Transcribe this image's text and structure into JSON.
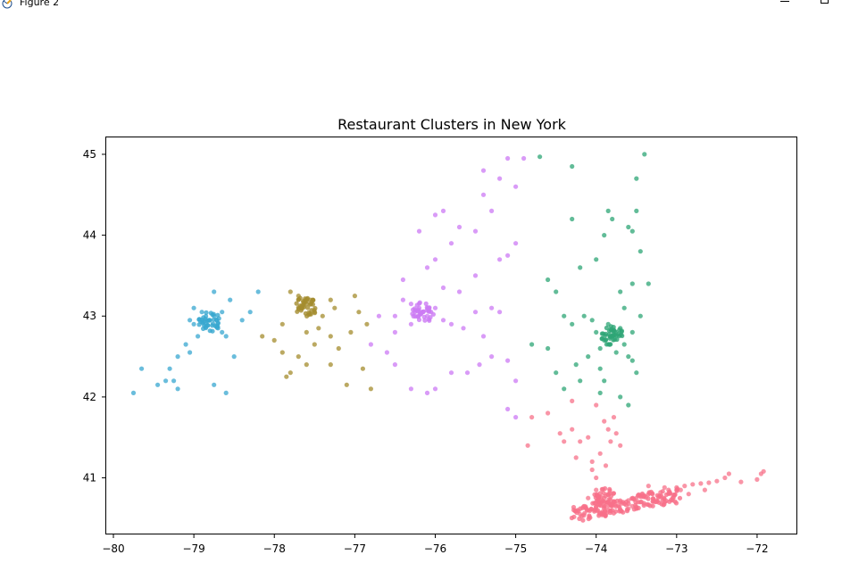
{
  "window": {
    "title": "Figure 2",
    "icon": "matplotlib-figure-icon"
  },
  "controls": {
    "minimize_icon": "minimize-icon",
    "maximize_icon": "maximize-icon"
  },
  "chart_data": {
    "type": "scatter",
    "title": "Restaurant Clusters in New York",
    "xlabel": "",
    "ylabel": "",
    "xlim": [
      -80.1,
      -71.5
    ],
    "ylim": [
      40.3,
      45.22
    ],
    "xticks": [
      -80,
      -79,
      -78,
      -77,
      -76,
      -75,
      -74,
      -73,
      -72
    ],
    "yticks": [
      41,
      42,
      43,
      44,
      45
    ],
    "xtick_labels": [
      "−80",
      "−79",
      "−78",
      "−77",
      "−76",
      "−75",
      "−74",
      "−73",
      "−72"
    ],
    "ytick_labels": [
      "41",
      "42",
      "43",
      "44",
      "45"
    ],
    "grid": false,
    "legend": "none",
    "series": [
      {
        "color": "#f77189",
        "cluster_center": [
          -73.9,
          40.75
        ],
        "points": [
          [
            -74.2,
            40.55
          ],
          [
            -74.1,
            40.6
          ],
          [
            -74.0,
            40.65
          ],
          [
            -73.95,
            40.7
          ],
          [
            -73.9,
            40.75
          ],
          [
            -73.85,
            40.7
          ],
          [
            -73.8,
            40.68
          ],
          [
            -73.7,
            40.7
          ],
          [
            -73.6,
            40.72
          ],
          [
            -73.5,
            40.75
          ],
          [
            -73.4,
            40.78
          ],
          [
            -73.3,
            40.8
          ],
          [
            -73.2,
            40.82
          ],
          [
            -73.1,
            40.85
          ],
          [
            -73.0,
            40.88
          ],
          [
            -72.9,
            40.9
          ],
          [
            -72.8,
            40.92
          ],
          [
            -72.7,
            40.93
          ],
          [
            -72.6,
            40.94
          ],
          [
            -72.5,
            40.96
          ],
          [
            -72.4,
            41.0
          ],
          [
            -72.35,
            41.05
          ],
          [
            -72.2,
            40.95
          ],
          [
            -72.0,
            40.98
          ],
          [
            -71.95,
            41.05
          ],
          [
            -71.92,
            41.08
          ],
          [
            -74.0,
            41.0
          ],
          [
            -74.05,
            41.2
          ],
          [
            -73.95,
            41.3
          ],
          [
            -74.1,
            41.5
          ],
          [
            -74.2,
            41.45
          ],
          [
            -73.85,
            41.6
          ],
          [
            -73.9,
            41.7
          ],
          [
            -74.3,
            41.6
          ],
          [
            -74.4,
            41.45
          ],
          [
            -74.6,
            41.8
          ],
          [
            -74.8,
            41.75
          ],
          [
            -74.85,
            41.4
          ],
          [
            -74.3,
            41.95
          ],
          [
            -73.75,
            41.55
          ],
          [
            -73.7,
            41.4
          ],
          [
            -74.0,
            40.85
          ],
          [
            -74.1,
            40.75
          ],
          [
            -74.15,
            40.65
          ],
          [
            -73.98,
            40.6
          ],
          [
            -73.92,
            40.58
          ],
          [
            -73.8,
            40.6
          ],
          [
            -73.6,
            40.62
          ],
          [
            -73.55,
            40.65
          ],
          [
            -73.45,
            40.7
          ],
          [
            -73.25,
            40.72
          ],
          [
            -73.05,
            40.75
          ],
          [
            -72.85,
            40.8
          ],
          [
            -72.65,
            40.85
          ],
          [
            -73.35,
            40.9
          ],
          [
            -73.15,
            40.88
          ],
          [
            -72.95,
            40.85
          ],
          [
            -74.05,
            41.1
          ],
          [
            -73.88,
            41.15
          ],
          [
            -74.25,
            41.25
          ],
          [
            -73.82,
            41.45
          ],
          [
            -74.45,
            41.55
          ],
          [
            -74.0,
            41.9
          ],
          [
            -73.78,
            41.75
          ]
        ]
      },
      {
        "color": "#2ea576",
        "cluster_center": [
          -73.8,
          42.75
        ],
        "points": [
          [
            -73.8,
            42.75
          ],
          [
            -73.75,
            42.8
          ],
          [
            -73.9,
            42.7
          ],
          [
            -73.7,
            42.85
          ],
          [
            -73.85,
            42.9
          ],
          [
            -73.65,
            42.65
          ],
          [
            -73.95,
            42.6
          ],
          [
            -74.0,
            42.8
          ],
          [
            -73.6,
            42.5
          ],
          [
            -74.1,
            42.5
          ],
          [
            -73.5,
            42.3
          ],
          [
            -74.2,
            42.2
          ],
          [
            -73.9,
            42.2
          ],
          [
            -73.95,
            42.05
          ],
          [
            -73.7,
            42.0
          ],
          [
            -73.6,
            41.9
          ],
          [
            -74.4,
            42.1
          ],
          [
            -74.5,
            42.3
          ],
          [
            -74.6,
            42.6
          ],
          [
            -74.8,
            42.65
          ],
          [
            -74.3,
            42.9
          ],
          [
            -74.4,
            43.0
          ],
          [
            -74.5,
            43.3
          ],
          [
            -74.6,
            43.45
          ],
          [
            -74.2,
            43.6
          ],
          [
            -74.0,
            43.7
          ],
          [
            -73.9,
            44.0
          ],
          [
            -73.85,
            44.3
          ],
          [
            -73.8,
            44.2
          ],
          [
            -73.6,
            44.1
          ],
          [
            -73.5,
            44.3
          ],
          [
            -73.5,
            44.7
          ],
          [
            -73.4,
            45.0
          ],
          [
            -74.3,
            44.85
          ],
          [
            -74.3,
            44.2
          ],
          [
            -73.7,
            43.3
          ],
          [
            -73.65,
            43.1
          ],
          [
            -73.55,
            43.4
          ],
          [
            -73.45,
            43.0
          ],
          [
            -73.55,
            42.8
          ],
          [
            -74.7,
            44.97
          ],
          [
            -73.35,
            43.4
          ],
          [
            -73.45,
            43.8
          ],
          [
            -73.55,
            44.05
          ],
          [
            -73.55,
            42.45
          ],
          [
            -74.05,
            42.95
          ],
          [
            -74.15,
            43.0
          ],
          [
            -74.25,
            42.4
          ],
          [
            -73.95,
            42.35
          ],
          [
            -73.75,
            42.55
          ]
        ]
      },
      {
        "color": "#38a7d0",
        "cluster_center": [
          -78.8,
          42.93
        ],
        "points": [
          [
            -78.8,
            42.95
          ],
          [
            -78.85,
            42.9
          ],
          [
            -78.75,
            43.0
          ],
          [
            -78.7,
            42.85
          ],
          [
            -78.9,
            43.05
          ],
          [
            -78.65,
            42.8
          ],
          [
            -79.0,
            43.1
          ],
          [
            -79.05,
            42.95
          ],
          [
            -79.1,
            42.65
          ],
          [
            -79.2,
            42.5
          ],
          [
            -79.3,
            42.35
          ],
          [
            -79.35,
            42.2
          ],
          [
            -79.45,
            42.15
          ],
          [
            -79.2,
            42.1
          ],
          [
            -79.65,
            42.35
          ],
          [
            -79.75,
            42.05
          ],
          [
            -78.75,
            43.3
          ],
          [
            -78.55,
            43.2
          ],
          [
            -78.4,
            42.95
          ],
          [
            -78.5,
            42.5
          ],
          [
            -78.6,
            42.05
          ],
          [
            -78.75,
            42.15
          ],
          [
            -79.0,
            42.9
          ],
          [
            -78.3,
            43.05
          ],
          [
            -78.2,
            43.3
          ],
          [
            -78.65,
            43.05
          ],
          [
            -78.6,
            42.75
          ],
          [
            -78.95,
            42.75
          ],
          [
            -79.05,
            42.55
          ],
          [
            -79.25,
            42.2
          ]
        ]
      },
      {
        "color": "#a48c2e",
        "cluster_center": [
          -77.6,
          43.12
        ],
        "points": [
          [
            -77.6,
            43.15
          ],
          [
            -77.65,
            43.1
          ],
          [
            -77.55,
            43.2
          ],
          [
            -77.7,
            43.25
          ],
          [
            -77.5,
            43.05
          ],
          [
            -77.4,
            43.0
          ],
          [
            -77.8,
            43.3
          ],
          [
            -77.3,
            43.2
          ],
          [
            -77.25,
            43.1
          ],
          [
            -77.0,
            43.25
          ],
          [
            -76.95,
            43.05
          ],
          [
            -76.85,
            42.9
          ],
          [
            -77.05,
            42.8
          ],
          [
            -77.2,
            42.6
          ],
          [
            -77.3,
            42.4
          ],
          [
            -77.5,
            42.65
          ],
          [
            -77.6,
            42.8
          ],
          [
            -77.7,
            42.5
          ],
          [
            -77.8,
            42.3
          ],
          [
            -77.9,
            42.55
          ],
          [
            -78.0,
            42.7
          ],
          [
            -78.15,
            42.75
          ],
          [
            -77.9,
            42.9
          ],
          [
            -77.1,
            42.15
          ],
          [
            -76.9,
            42.35
          ],
          [
            -76.8,
            42.1
          ],
          [
            -77.6,
            42.4
          ],
          [
            -77.3,
            42.75
          ],
          [
            -77.85,
            42.25
          ],
          [
            -77.45,
            42.85
          ]
        ]
      },
      {
        "color": "#cc7af4",
        "cluster_center": [
          -76.15,
          43.05
        ],
        "points": [
          [
            -76.15,
            43.05
          ],
          [
            -76.2,
            43.1
          ],
          [
            -76.1,
            43.0
          ],
          [
            -76.3,
            43.15
          ],
          [
            -76.0,
            43.1
          ],
          [
            -76.4,
            43.2
          ],
          [
            -76.5,
            43.0
          ],
          [
            -75.9,
            42.95
          ],
          [
            -75.8,
            42.9
          ],
          [
            -75.65,
            42.85
          ],
          [
            -75.5,
            43.05
          ],
          [
            -75.3,
            43.1
          ],
          [
            -75.2,
            43.05
          ],
          [
            -75.4,
            42.75
          ],
          [
            -75.3,
            42.5
          ],
          [
            -75.1,
            42.45
          ],
          [
            -75.0,
            42.2
          ],
          [
            -75.0,
            41.75
          ],
          [
            -75.1,
            41.85
          ],
          [
            -75.45,
            42.4
          ],
          [
            -75.6,
            42.3
          ],
          [
            -75.8,
            42.3
          ],
          [
            -76.0,
            42.1
          ],
          [
            -76.1,
            42.05
          ],
          [
            -76.3,
            42.1
          ],
          [
            -76.5,
            42.4
          ],
          [
            -76.6,
            42.55
          ],
          [
            -76.8,
            42.65
          ],
          [
            -76.7,
            43.0
          ],
          [
            -76.5,
            42.8
          ],
          [
            -76.3,
            42.9
          ],
          [
            -75.9,
            43.35
          ],
          [
            -75.7,
            43.3
          ],
          [
            -75.5,
            43.5
          ],
          [
            -75.2,
            43.7
          ],
          [
            -75.0,
            43.9
          ],
          [
            -75.5,
            44.05
          ],
          [
            -75.7,
            44.1
          ],
          [
            -75.9,
            44.3
          ],
          [
            -76.0,
            44.25
          ],
          [
            -75.4,
            44.5
          ],
          [
            -75.2,
            44.7
          ],
          [
            -75.1,
            44.95
          ],
          [
            -74.9,
            44.95
          ],
          [
            -75.4,
            44.8
          ],
          [
            -75.0,
            44.6
          ],
          [
            -76.2,
            44.05
          ],
          [
            -75.8,
            43.9
          ],
          [
            -76.0,
            43.7
          ],
          [
            -76.1,
            43.6
          ],
          [
            -75.3,
            44.3
          ],
          [
            -75.1,
            43.75
          ],
          [
            -76.4,
            43.45
          ]
        ]
      }
    ]
  }
}
